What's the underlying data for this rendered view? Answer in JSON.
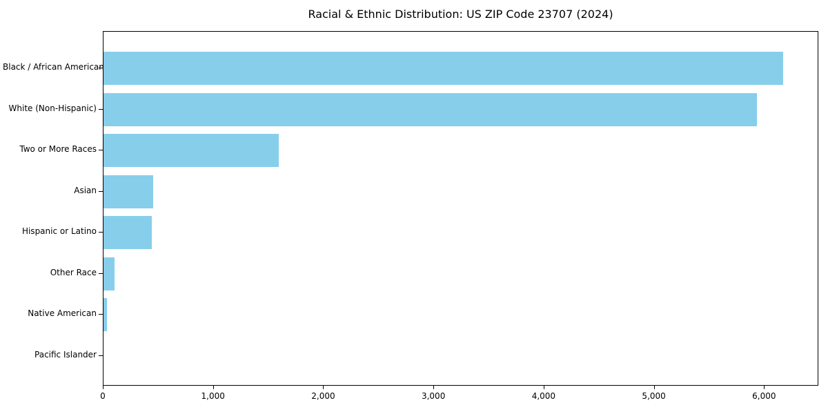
{
  "title": "Racial & Ethnic Distribution: US ZIP Code 23707 (2024)",
  "chart_data": {
    "type": "bar",
    "orientation": "horizontal",
    "title": "Racial & Ethnic Distribution: US ZIP Code 23707 (2024)",
    "categories": [
      "Black / African American",
      "White (Non-Hispanic)",
      "Two or More Races",
      "Asian",
      "Hispanic or Latino",
      "Other Race",
      "Native American",
      "Pacific Islander"
    ],
    "values": [
      6170,
      5930,
      1590,
      450,
      438,
      100,
      30,
      0
    ],
    "xlabel": "",
    "ylabel": "",
    "xlim": [
      0,
      6480
    ],
    "xticks": [
      {
        "value": 0,
        "label": "0"
      },
      {
        "value": 1000,
        "label": "1,000"
      },
      {
        "value": 2000,
        "label": "2,000"
      },
      {
        "value": 3000,
        "label": "3,000"
      },
      {
        "value": 4000,
        "label": "4,000"
      },
      {
        "value": 5000,
        "label": "5,000"
      },
      {
        "value": 6000,
        "label": "6,000"
      }
    ],
    "grid": false,
    "legend": null,
    "bar_color": "#87CEEB",
    "axis_color": "#000000",
    "text_color": "#000000",
    "background_color": "#ffffff"
  }
}
